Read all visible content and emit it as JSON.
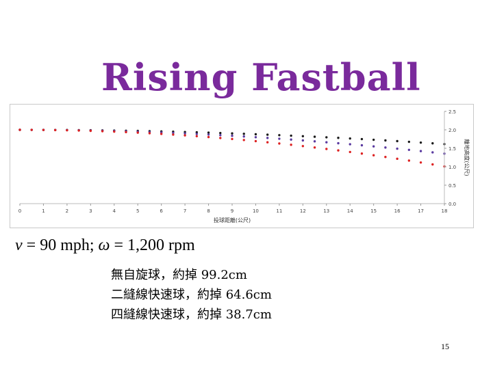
{
  "slide": {
    "title": "Rising Fastball",
    "formula": {
      "v_var": "v",
      "v_rest": " = 90 mph; ",
      "w_var": "ω",
      "w_rest": " = 1,200 rpm"
    },
    "results": [
      "無自旋球，約掉 99.2cm",
      "二縫線快速球，約掉 64.6cm",
      "四縫線快速球，約掉 38.7cm"
    ],
    "page_number": "15"
  },
  "chart_data": {
    "type": "scatter",
    "xlabel": "投球距離(公尺)",
    "ylabel": "離地高度(公尺)",
    "xlim": [
      0,
      18
    ],
    "ylim": [
      0,
      2.5
    ],
    "xticks": [
      "0",
      "1",
      "2",
      "3",
      "4",
      "5",
      "6",
      "7",
      "8",
      "9",
      "10",
      "11",
      "12",
      "13",
      "14",
      "15",
      "16",
      "17",
      "18"
    ],
    "yticks": [
      "0.0",
      "0.5",
      "1.0",
      "1.5",
      "2.0",
      "2.5"
    ],
    "x_step": 0.5,
    "grid": false,
    "series": [
      {
        "color": "#1a1a1a",
        "y_start": 2.0,
        "drop": 0.387
      },
      {
        "color": "#5a3aa0",
        "y_start": 2.0,
        "drop": 0.646
      },
      {
        "color": "#dd2222",
        "y_start": 2.0,
        "drop": 0.992
      }
    ]
  }
}
